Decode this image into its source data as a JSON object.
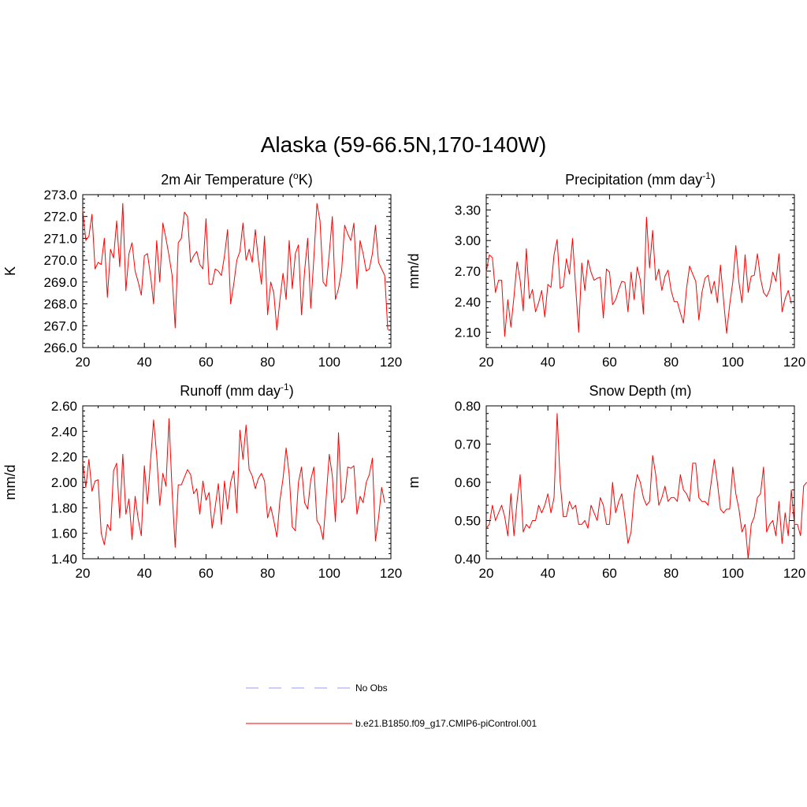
{
  "figure_title": "Alaska (59-66.5N,170-140W)",
  "legend": [
    {
      "label": "No Obs",
      "color": "#9999ff",
      "dash": "dashed"
    },
    {
      "label": "b.e21.B1850.f09_g17.CMIP6-piControl.001",
      "color": "#ff0000",
      "dash": "solid"
    }
  ],
  "chart_data": [
    {
      "type": "line",
      "title": "2m Air Temperature (",
      "title_super": "o",
      "title_after": "K)",
      "xlabel": "",
      "ylabel": "K",
      "xlim": [
        20,
        120
      ],
      "ylim": [
        266.0,
        273.0
      ],
      "xticks": [
        20,
        40,
        60,
        80,
        100,
        120
      ],
      "xtick_labels": [
        "20",
        "40",
        "60",
        "80",
        "100",
        "120"
      ],
      "yticks": [
        266.0,
        267.0,
        268.0,
        269.0,
        270.0,
        271.0,
        272.0,
        273.0
      ],
      "ytick_labels": [
        "266.0",
        "267.0",
        "268.0",
        "269.0",
        "270.0",
        "271.0",
        "272.0",
        "273.0"
      ],
      "series": [
        {
          "name": "b.e21.B1850.f09_g17.CMIP6-piControl.001",
          "color": "#ff0000",
          "x_start": 20,
          "values": [
            272.3,
            270.9,
            271.1,
            272.1,
            269.6,
            269.9,
            269.8,
            271.0,
            268.3,
            270.5,
            270.1,
            271.8,
            269.7,
            272.6,
            268.6,
            270.3,
            270.8,
            269.5,
            269.0,
            268.4,
            270.2,
            270.3,
            269.3,
            268.0,
            270.9,
            269.0,
            271.7,
            271.0,
            270.2,
            269.3,
            266.9,
            270.8,
            271.0,
            272.2,
            272.0,
            269.9,
            270.2,
            270.4,
            269.8,
            269.6,
            271.9,
            268.9,
            268.9,
            269.6,
            269.5,
            269.3,
            270.2,
            271.4,
            268.0,
            268.9,
            270.0,
            270.4,
            271.7,
            270.0,
            270.5,
            269.9,
            271.4,
            270.0,
            268.9,
            271.1,
            267.5,
            269.0,
            268.5,
            266.8,
            268.2,
            269.4,
            268.2,
            270.9,
            268.7,
            270.3,
            270.7,
            267.5,
            269.5,
            271.0,
            267.8,
            270.1,
            272.6,
            271.8,
            269.0,
            268.8,
            270.3,
            272.0,
            268.2,
            268.7,
            269.5,
            271.6,
            271.2,
            270.9,
            271.7,
            268.7,
            270.9,
            270.3,
            269.5,
            269.6,
            270.3,
            271.6,
            269.9,
            269.6,
            269.3,
            266.8
          ]
        }
      ]
    },
    {
      "type": "line",
      "title": "Precipitation (mm day",
      "title_super": "-1",
      "title_after": ")",
      "xlabel": "",
      "ylabel": "mm/d",
      "xlim": [
        20,
        120
      ],
      "ylim": [
        1.95,
        3.45
      ],
      "xticks": [
        20,
        40,
        60,
        80,
        100,
        120
      ],
      "xtick_labels": [
        "20",
        "40",
        "60",
        "80",
        "100",
        "120"
      ],
      "yticks": [
        2.1,
        2.4,
        2.7,
        3.0,
        3.3
      ],
      "ytick_labels": [
        "2.10",
        "2.40",
        "2.70",
        "3.00",
        "3.30"
      ],
      "series": [
        {
          "name": "b.e21.B1850.f09_g17.CMIP6-piControl.001",
          "color": "#ff0000",
          "x_start": 20,
          "values": [
            2.69,
            2.86,
            2.83,
            2.49,
            2.61,
            2.61,
            2.06,
            2.42,
            2.15,
            2.45,
            2.79,
            2.61,
            2.31,
            2.92,
            2.43,
            2.52,
            2.3,
            2.39,
            2.51,
            2.25,
            2.57,
            2.54,
            2.86,
            3.01,
            2.53,
            2.55,
            2.82,
            2.67,
            3.02,
            2.55,
            2.1,
            2.78,
            2.51,
            2.81,
            2.69,
            2.61,
            2.63,
            2.64,
            2.24,
            2.72,
            2.69,
            2.37,
            2.42,
            2.52,
            2.6,
            2.59,
            2.3,
            2.69,
            2.42,
            2.74,
            2.61,
            2.28,
            3.23,
            2.73,
            3.1,
            2.61,
            2.72,
            2.51,
            2.65,
            2.71,
            2.51,
            2.4,
            2.4,
            2.29,
            2.19,
            2.53,
            2.75,
            2.67,
            2.6,
            2.22,
            2.49,
            2.63,
            2.66,
            2.48,
            2.6,
            2.39,
            2.76,
            2.42,
            2.09,
            2.37,
            2.59,
            2.95,
            2.59,
            2.39,
            2.86,
            2.49,
            2.65,
            2.66,
            2.87,
            2.63,
            2.49,
            2.45,
            2.52,
            2.69,
            2.6,
            2.87,
            2.3,
            2.43,
            2.51,
            2.38
          ]
        }
      ]
    },
    {
      "type": "line",
      "title": "Runoff (mm day",
      "title_super": "-1",
      "title_after": ")",
      "xlabel": "",
      "ylabel": "mm/d",
      "xlim": [
        20,
        120
      ],
      "ylim": [
        1.4,
        2.6
      ],
      "xticks": [
        20,
        40,
        60,
        80,
        100,
        120
      ],
      "xtick_labels": [
        "20",
        "40",
        "60",
        "80",
        "100",
        "120"
      ],
      "yticks": [
        1.4,
        1.6,
        1.8,
        2.0,
        2.2,
        2.4,
        2.6
      ],
      "ytick_labels": [
        "1.40",
        "1.60",
        "1.80",
        "2.00",
        "2.20",
        "2.40",
        "2.60"
      ],
      "series": [
        {
          "name": "b.e21.B1850.f09_g17.CMIP6-piControl.001",
          "color": "#ff0000",
          "x_start": 20,
          "values": [
            2.16,
            1.96,
            2.18,
            1.93,
            2.01,
            2.02,
            1.6,
            1.51,
            1.67,
            1.62,
            2.09,
            2.15,
            1.72,
            2.22,
            1.75,
            1.87,
            1.55,
            1.89,
            1.71,
            1.58,
            2.13,
            1.83,
            2.17,
            2.49,
            2.21,
            1.82,
            2.07,
            1.97,
            2.5,
            1.93,
            1.49,
            1.98,
            1.98,
            2.04,
            2.1,
            2.06,
            1.91,
            1.95,
            1.75,
            2.01,
            1.86,
            1.92,
            1.64,
            1.81,
            1.99,
            1.67,
            2.01,
            1.79,
            2.0,
            2.09,
            1.76,
            2.41,
            2.18,
            2.45,
            2.1,
            2.05,
            1.95,
            2.03,
            2.07,
            2.01,
            1.72,
            1.81,
            1.7,
            1.57,
            1.86,
            2.03,
            2.27,
            2.06,
            1.65,
            1.62,
            2.0,
            2.12,
            1.84,
            1.79,
            2.02,
            2.12,
            1.7,
            1.66,
            1.55,
            1.88,
            2.22,
            2.05,
            1.69,
            2.39,
            1.84,
            1.88,
            2.12,
            2.11,
            2.13,
            1.75,
            1.89,
            1.84,
            2.0,
            2.06,
            2.19,
            1.54,
            1.72,
            1.96,
            1.84
          ]
        }
      ]
    },
    {
      "type": "line",
      "title": "Snow Depth (m)",
      "title_super": "",
      "title_after": "",
      "xlabel": "",
      "ylabel": "m",
      "xlim": [
        20,
        120
      ],
      "ylim": [
        0.4,
        0.8
      ],
      "xticks": [
        20,
        40,
        60,
        80,
        100,
        120
      ],
      "xtick_labels": [
        "20",
        "40",
        "60",
        "80",
        "100",
        "120"
      ],
      "yticks": [
        0.4,
        0.5,
        0.6,
        0.7,
        0.8
      ],
      "ytick_labels": [
        "0.40",
        "0.50",
        "0.60",
        "0.70",
        "0.80"
      ],
      "series": [
        {
          "name": "b.e21.B1850.f09_g17.CMIP6-piControl.001",
          "color": "#ff0000",
          "x_start": 20,
          "values": [
            0.48,
            0.49,
            0.54,
            0.5,
            0.52,
            0.54,
            0.51,
            0.46,
            0.57,
            0.46,
            0.55,
            0.62,
            0.47,
            0.49,
            0.48,
            0.5,
            0.5,
            0.54,
            0.52,
            0.54,
            0.57,
            0.52,
            0.56,
            0.78,
            0.6,
            0.51,
            0.51,
            0.55,
            0.53,
            0.54,
            0.49,
            0.49,
            0.5,
            0.48,
            0.54,
            0.52,
            0.5,
            0.56,
            0.54,
            0.49,
            0.49,
            0.6,
            0.52,
            0.55,
            0.57,
            0.51,
            0.44,
            0.47,
            0.57,
            0.62,
            0.6,
            0.56,
            0.54,
            0.55,
            0.67,
            0.62,
            0.54,
            0.56,
            0.59,
            0.55,
            0.56,
            0.56,
            0.55,
            0.62,
            0.58,
            0.57,
            0.55,
            0.65,
            0.65,
            0.56,
            0.55,
            0.55,
            0.54,
            0.6,
            0.66,
            0.6,
            0.53,
            0.52,
            0.53,
            0.53,
            0.64,
            0.57,
            0.53,
            0.47,
            0.49,
            0.4,
            0.49,
            0.51,
            0.56,
            0.57,
            0.64,
            0.47,
            0.49,
            0.5,
            0.46,
            0.55,
            0.44,
            0.52,
            0.46,
            0.58,
            0.49,
            0.49,
            0.46,
            0.59,
            0.6
          ]
        }
      ]
    }
  ]
}
